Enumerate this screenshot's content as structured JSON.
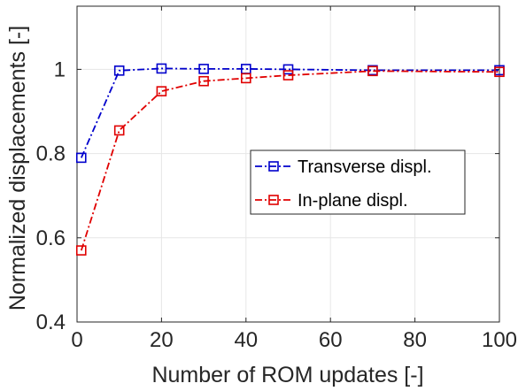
{
  "chart_data": {
    "type": "line",
    "title": "",
    "xlabel": "Number of ROM updates [-]",
    "ylabel": "Normalized displacements [-]",
    "xlim": [
      0,
      100
    ],
    "ylim": [
      0.4,
      1.15
    ],
    "xticks": [
      0,
      20,
      40,
      60,
      80,
      100
    ],
    "xtick_labels": [
      "0",
      "20",
      "40",
      "60",
      "80",
      "100"
    ],
    "yticks": [
      0.4,
      0.6,
      0.8,
      1.0
    ],
    "ytick_labels": [
      "0.4",
      "0.6",
      "0.8",
      "1"
    ],
    "grid": true,
    "legend_position": "center-right",
    "x": [
      1,
      10,
      20,
      30,
      40,
      50,
      70,
      100
    ],
    "series": [
      {
        "name": "Transverse displ.",
        "color": "#0000CC",
        "marker": "square",
        "line_style": "dash-dot",
        "values": [
          0.79,
          0.997,
          1.002,
          1.001,
          1.001,
          1.0,
          0.998,
          0.998
        ]
      },
      {
        "name": "In-plane displ.",
        "color": "#E00000",
        "marker": "square",
        "line_style": "dash-dot",
        "values": [
          0.57,
          0.855,
          0.948,
          0.972,
          0.979,
          0.986,
          0.996,
          0.994
        ]
      }
    ]
  }
}
